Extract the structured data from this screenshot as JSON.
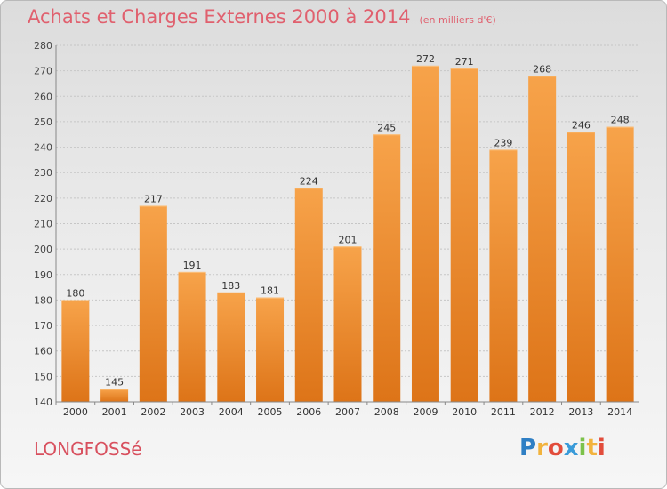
{
  "chart_data": {
    "type": "bar",
    "title": "Achats et Charges Externes 2000 à 2014",
    "subtitle": "(en milliers d'€)",
    "categories": [
      "2000",
      "2001",
      "2002",
      "2003",
      "2004",
      "2005",
      "2006",
      "2007",
      "2008",
      "2009",
      "2010",
      "2011",
      "2012",
      "2013",
      "2014"
    ],
    "values": [
      180,
      145,
      217,
      191,
      183,
      181,
      224,
      201,
      245,
      272,
      271,
      239,
      268,
      246,
      248
    ],
    "ylim": [
      140,
      280
    ],
    "yticks": [
      140,
      150,
      160,
      170,
      180,
      190,
      200,
      210,
      220,
      230,
      240,
      250,
      260,
      270,
      280
    ],
    "grid": true,
    "bar_color": "#f39a3c"
  },
  "place_name": "LONGFOSSé",
  "logo": {
    "letters": [
      "P",
      "r",
      "o",
      "x",
      "i",
      "t",
      "i"
    ],
    "colors": [
      "#2f7fc4",
      "#f2b33d",
      "#e24c3b",
      "#3a9bd9",
      "#7cc24a",
      "#f2b33d",
      "#e24c3b"
    ]
  }
}
